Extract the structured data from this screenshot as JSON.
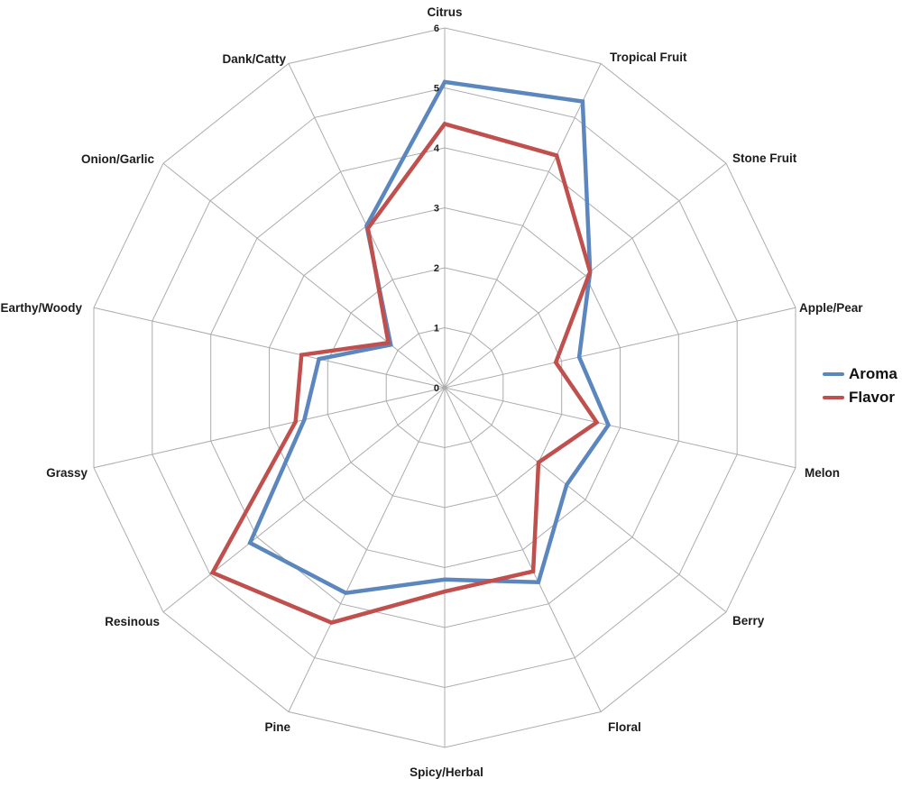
{
  "chart_data": {
    "type": "radar",
    "title": "",
    "categories": [
      "Citrus",
      "Tropical Fruit",
      "Stone Fruit",
      "Apple/Pear",
      "Melon",
      "Berry",
      "Floral",
      "Spicy/Herbal",
      "Pine",
      "Resinous",
      "Grassy",
      "Earthy/Woody",
      "Onion/Garlic",
      "Dank/Catty"
    ],
    "series": [
      {
        "name": "Aroma",
        "color": "#5b87be",
        "values": [
          5.1,
          5.3,
          3.1,
          2.3,
          2.8,
          2.6,
          3.6,
          3.2,
          3.8,
          4.15,
          2.4,
          2.15,
          1.15,
          3.0
        ]
      },
      {
        "name": "Flavor",
        "color": "#c0504d",
        "values": [
          4.4,
          4.3,
          3.1,
          1.9,
          2.6,
          2.0,
          3.4,
          3.4,
          4.35,
          4.95,
          2.55,
          2.45,
          1.2,
          2.95
        ]
      }
    ],
    "radial_axis": {
      "min": 0,
      "max": 6,
      "ticks": [
        "0",
        "1",
        "2",
        "3",
        "4",
        "5",
        "6"
      ]
    },
    "grid": true,
    "grid_color": "#acacac",
    "legend": {
      "position": "right",
      "entries": [
        "Aroma",
        "Flavor"
      ]
    }
  }
}
